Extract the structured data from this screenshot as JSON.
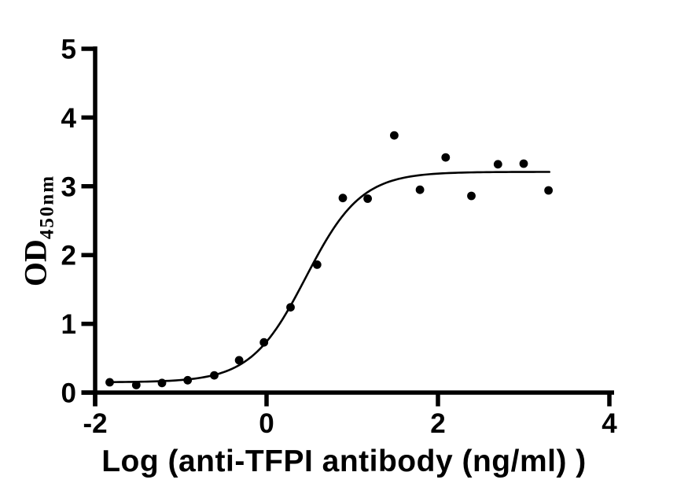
{
  "figure": {
    "background_color": "#ffffff",
    "ink_color": "#000000"
  },
  "chart_data": {
    "type": "scatter",
    "title": "",
    "xlabel": "Log (anti-TFPI antibody (ng/ml) )",
    "ylabel": "OD",
    "ylabel_subscript": "450nm",
    "xlim": [
      -2,
      4
    ],
    "ylim": [
      0,
      5
    ],
    "xticks": [
      -2,
      0,
      2,
      4
    ],
    "yticks": [
      0,
      1,
      2,
      3,
      4,
      5
    ],
    "grid": false,
    "legend_position": "none",
    "marker": "filled-circle",
    "marker_color": "#000000",
    "curve_color": "#000000",
    "points": [
      {
        "x": -1.83,
        "y": 0.15
      },
      {
        "x": -1.52,
        "y": 0.11
      },
      {
        "x": -1.22,
        "y": 0.14
      },
      {
        "x": -0.92,
        "y": 0.18
      },
      {
        "x": -0.61,
        "y": 0.25
      },
      {
        "x": -0.32,
        "y": 0.47
      },
      {
        "x": -0.03,
        "y": 0.73
      },
      {
        "x": 0.28,
        "y": 1.24
      },
      {
        "x": 0.59,
        "y": 1.86
      },
      {
        "x": 0.89,
        "y": 2.83
      },
      {
        "x": 1.18,
        "y": 2.82
      },
      {
        "x": 1.49,
        "y": 3.74
      },
      {
        "x": 1.79,
        "y": 2.95
      },
      {
        "x": 2.09,
        "y": 3.42
      },
      {
        "x": 2.39,
        "y": 2.86
      },
      {
        "x": 2.7,
        "y": 3.32
      },
      {
        "x": 3.0,
        "y": 3.33
      },
      {
        "x": 3.29,
        "y": 2.94
      }
    ],
    "fit_curve": {
      "model": "4PL-sigmoid",
      "bottom": 0.15,
      "top": 3.21,
      "logEC50": 0.46,
      "hillslope": 1.35,
      "x_start": -1.83,
      "x_end": 3.3
    }
  }
}
